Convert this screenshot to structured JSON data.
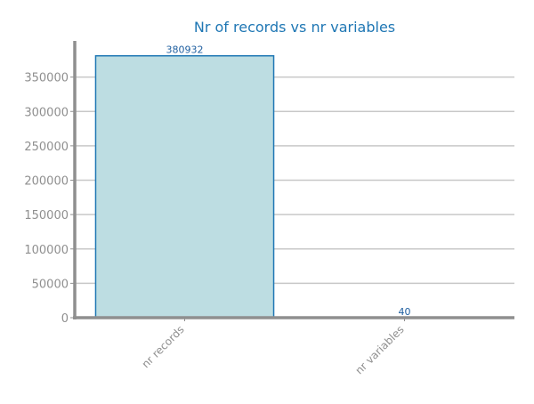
{
  "chart_data": {
    "type": "bar",
    "title": "Nr of records vs nr variables",
    "xlabel": "",
    "ylabel": "",
    "categories": [
      "nr records",
      "nr variables"
    ],
    "values": [
      380932,
      40
    ],
    "value_labels": [
      "380932",
      "40"
    ],
    "yticks": [
      0,
      50000,
      100000,
      150000,
      200000,
      250000,
      300000,
      350000
    ],
    "ytick_labels": [
      "0",
      "50000",
      "100000",
      "150000",
      "200000",
      "250000",
      "300000",
      "350000"
    ],
    "ylim": [
      0,
      400000
    ],
    "grid": "horizontal",
    "legend": "none"
  },
  "colors": {
    "title": "#1f77b4",
    "bar_fill": "#bddde2",
    "bar_edge": "#1f77b4",
    "value_label": "#1f5fa0",
    "axis": "#8f8f8f",
    "grid": "#c8c8c8",
    "tick_label": "#8f8f8f"
  }
}
